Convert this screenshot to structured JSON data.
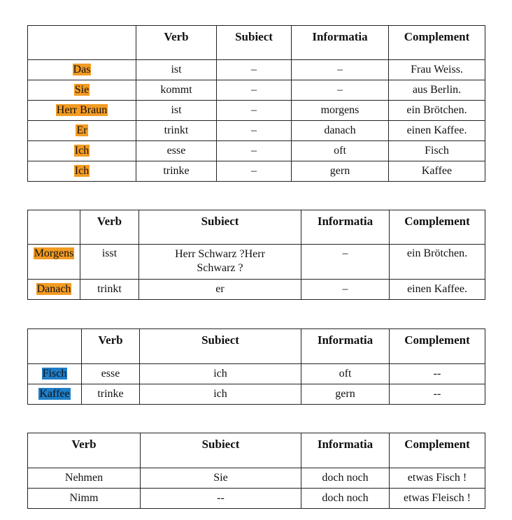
{
  "headers": {
    "verb": "Verb",
    "subiect": "Subiect",
    "informatia": "Informatia",
    "complement": "Complement"
  },
  "table1": {
    "rows": [
      {
        "subiect": "Das",
        "verb": "ist",
        "dash": "–",
        "informatia": "–",
        "complement": "Frau Weiss."
      },
      {
        "subiect": "Sie",
        "verb": "kommt",
        "dash": "–",
        "informatia": "–",
        "complement": "aus Berlin."
      },
      {
        "subiect": "Herr Braun",
        "verb": "ist",
        "dash": "–",
        "informatia": "morgens",
        "complement": "ein Brötchen."
      },
      {
        "subiect": "Er",
        "verb": "trinkt",
        "dash": "–",
        "informatia": "danach",
        "complement": "einen Kaffee."
      },
      {
        "subiect": "Ich",
        "verb": "esse",
        "dash": "–",
        "informatia": "oft",
        "complement": "Fisch"
      },
      {
        "subiect": "Ich",
        "verb": "trinke",
        "dash": "–",
        "informatia": "gern",
        "complement": "Kaffee"
      }
    ]
  },
  "table2": {
    "rows": [
      {
        "first": "Morgens",
        "verb": "isst",
        "subiect_line1": "Herr Schwarz ?Herr",
        "subiect_line2": "Schwarz ?",
        "informatia": "–",
        "complement": "ein Brötchen."
      },
      {
        "first": "Danach",
        "verb": "trinkt",
        "subiect": "er",
        "informatia": "–",
        "complement": "einen Kaffee."
      }
    ]
  },
  "table3": {
    "rows": [
      {
        "first": "Fisch",
        "verb": "esse",
        "subiect": "ich",
        "informatia": "oft",
        "complement": "--"
      },
      {
        "first": "Kaffee",
        "verb": "trinke",
        "subiect": "ich",
        "informatia": "gern",
        "complement": "--"
      }
    ]
  },
  "table4": {
    "rows": [
      {
        "verb": "Nehmen",
        "subiect": "Sie",
        "informatia": "doch noch",
        "complement": "etwas Fisch !"
      },
      {
        "verb": "Nimm",
        "subiect": "--",
        "informatia": "doch noch",
        "complement": "etwas Fleisch !"
      }
    ]
  },
  "colors": {
    "highlight_orange": "#f39b22",
    "highlight_blue": "#1e7ec8"
  }
}
